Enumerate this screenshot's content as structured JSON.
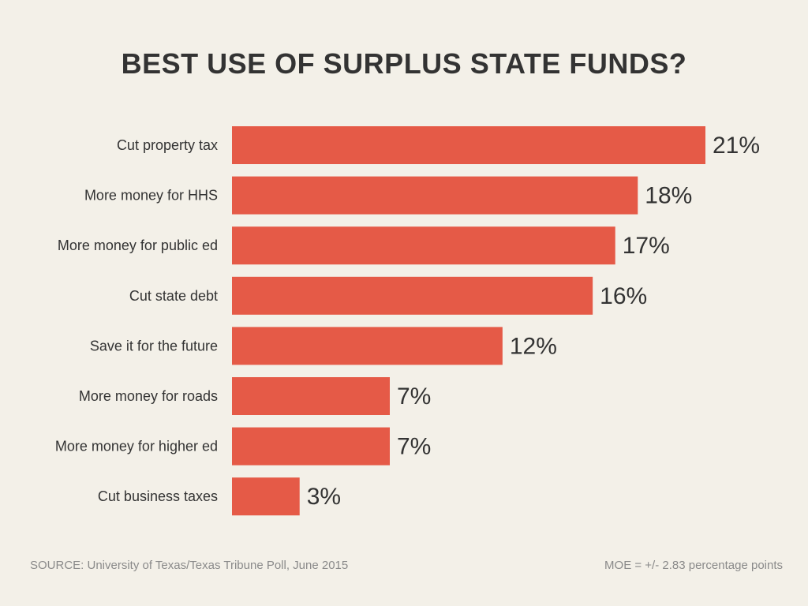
{
  "colors": {
    "background": "#f3f0e8",
    "bar": "#e55a47",
    "text": "#333333",
    "footer_text": "#8a8a8a"
  },
  "footer": {
    "source": "SOURCE: University of Texas/Texas Tribune Poll, June 2015",
    "moe": "MOE = +/- 2.83 percentage points"
  },
  "chart_data": {
    "type": "bar",
    "orientation": "horizontal",
    "title": "BEST USE OF SURPLUS STATE FUNDS?",
    "xlabel": "",
    "ylabel": "",
    "categories": [
      "Cut property tax",
      "More money for HHS",
      "More money for public ed",
      "Cut state debt",
      "Save it for the future",
      "More money for roads",
      "More money for higher ed",
      "Cut business taxes"
    ],
    "values": [
      21,
      18,
      17,
      16,
      12,
      7,
      7,
      3
    ],
    "value_labels": [
      "21%",
      "18%",
      "17%",
      "16%",
      "12%",
      "7%",
      "7%",
      "3%"
    ],
    "xlim": [
      0,
      21
    ],
    "grid": false,
    "legend": "none"
  }
}
